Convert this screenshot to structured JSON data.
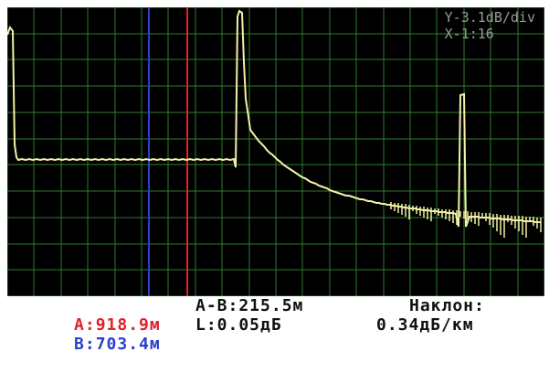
{
  "display": {
    "colors": {
      "background": "#000000",
      "grid": "#2e7d2e",
      "trace": "#f3f1a6",
      "cursor_a": "#e0202a",
      "cursor_b": "#2b3fd0"
    },
    "scale": {
      "y": "Y-3.1dB/div",
      "x": "X-1:16"
    }
  },
  "readouts": {
    "a_label": "A",
    "a_value": ":918.9м",
    "b_label": "B",
    "b_value": ":703.4м",
    "ab_label": "A-B:215.5м",
    "loss_label": "L:0.05дБ",
    "slope_label": "Наклон:",
    "slope_value": "0.34дБ/км"
  }
}
